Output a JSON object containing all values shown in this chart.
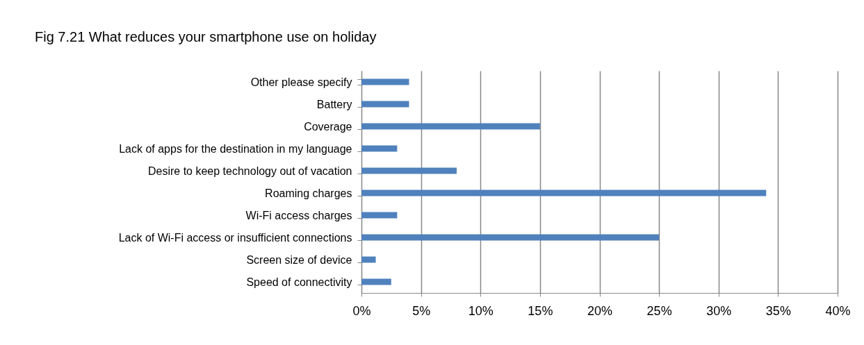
{
  "chart_data": {
    "type": "bar",
    "orientation": "horizontal",
    "title": "Fig 7.21   What reduces your smartphone use on holiday",
    "categories": [
      "Other please specify",
      "Battery",
      "Coverage",
      "Lack of apps for the destination in my language",
      "Desire to keep technology out of vacation",
      "Roaming charges",
      "Wi-Fi access charges",
      "Lack of Wi-Fi access or insufficient connections",
      "Screen size of device",
      "Speed of connectivity"
    ],
    "values": [
      4,
      4,
      15,
      3,
      8,
      34,
      3,
      25,
      1.2,
      2.5
    ],
    "color": "#4f81bd",
    "xlim": [
      0,
      40
    ],
    "xticks": [
      {
        "value": 0,
        "label": "0%"
      },
      {
        "value": 5,
        "label": "5%"
      },
      {
        "value": 10,
        "label": "10%"
      },
      {
        "value": 15,
        "label": "15%"
      },
      {
        "value": 20,
        "label": "20%"
      },
      {
        "value": 25,
        "label": "25%"
      },
      {
        "value": 30,
        "label": "30%"
      },
      {
        "value": 35,
        "label": "35%"
      },
      {
        "value": 40,
        "label": "40%"
      }
    ],
    "grid": "x",
    "legend": false
  }
}
